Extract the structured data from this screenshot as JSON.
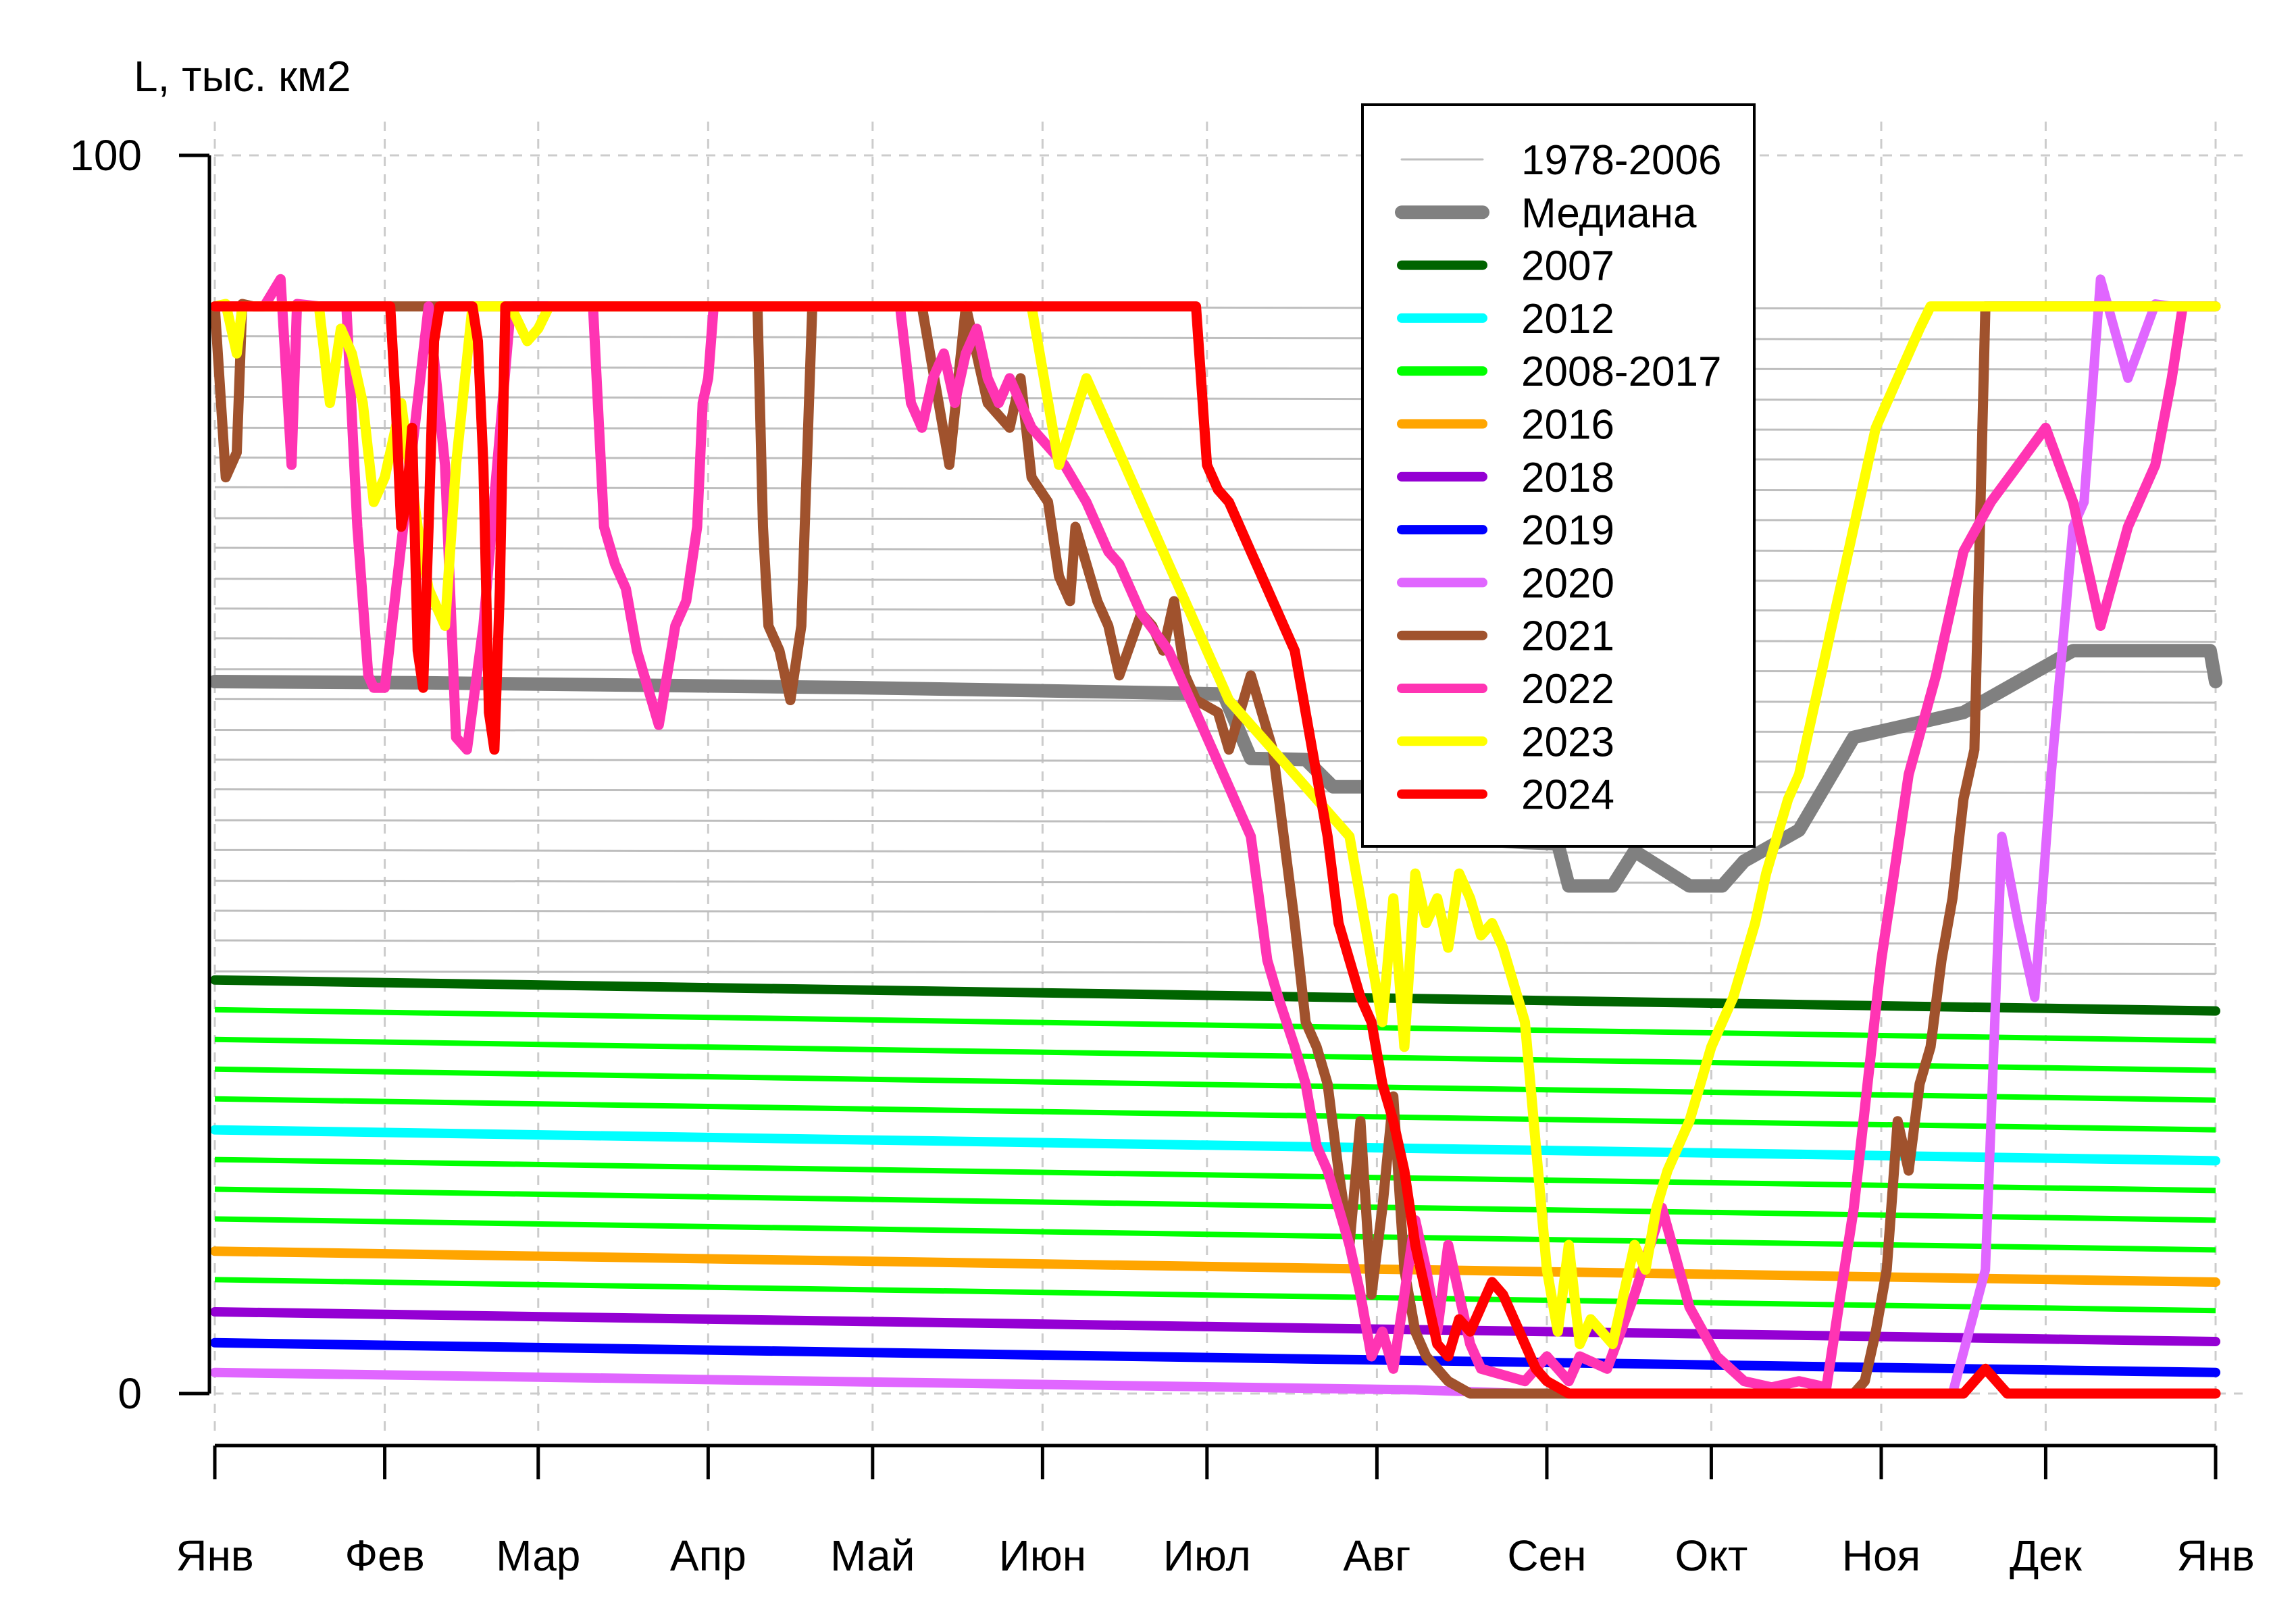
{
  "chart_data": {
    "type": "line",
    "ylabel": "L, тыс. км2",
    "ylim": [
      0,
      100
    ],
    "yticks": [
      0,
      100
    ],
    "xlim": [
      1,
      366
    ],
    "x_tick_days": [
      1,
      32,
      60,
      91,
      121,
      152,
      182,
      213,
      244,
      274,
      305,
      335,
      366
    ],
    "x_tick_labels": [
      "Янв",
      "Фев",
      "Мар",
      "Апр",
      "Май",
      "Июн",
      "Июл",
      "Авг",
      "Сен",
      "Окт",
      "Ноя",
      "Дек",
      "Янв"
    ],
    "grid": true,
    "legend_position": "top-center",
    "legend": [
      {
        "label": "1978-2006",
        "color": "#bebebe"
      },
      {
        "label": "Медиана",
        "color": "#808080"
      },
      {
        "label": "2007",
        "color": "#006400"
      },
      {
        "label": "2012",
        "color": "#00ffff"
      },
      {
        "label": "2008-2017",
        "color": "#00ff00"
      },
      {
        "label": "2016",
        "color": "#ffa500"
      },
      {
        "label": "2018",
        "color": "#9400d3"
      },
      {
        "label": "2019",
        "color": "#0000ff"
      },
      {
        "label": "2020",
        "color": "#e066ff"
      },
      {
        "label": "2021",
        "color": "#a0522d"
      },
      {
        "label": "2022",
        "color": "#ff34b3"
      },
      {
        "label": "2023",
        "color": "#ffff00"
      },
      {
        "label": "2024",
        "color": "#ff0000"
      }
    ],
    "series": [
      {
        "name": "Медиана",
        "color": "#808080",
        "x": [
          1,
          40,
          80,
          120,
          160,
          185,
          190,
          200,
          205,
          215,
          230,
          240,
          246,
          248,
          256,
          260,
          270,
          276,
          280,
          290,
          300,
          320,
          340,
          365,
          366
        ],
        "values": [
          57.5,
          57.4,
          57.2,
          57.0,
          56.7,
          56.5,
          51.3,
          51.2,
          49.0,
          49.0,
          44.8,
          44.5,
          44.4,
          41.0,
          41.0,
          43.8,
          41.0,
          41.0,
          43.0,
          45.5,
          53.0,
          55.0,
          60.0,
          60.0,
          57.5
        ]
      },
      {
        "name": "2007",
        "color": "#006400",
        "x": [
          1,
          366
        ],
        "values": [
          33.4,
          30.9
        ]
      },
      {
        "name": "2012",
        "color": "#00ffff",
        "x": [
          1,
          366
        ],
        "values": [
          21.3,
          18.8
        ]
      },
      {
        "name": "2016",
        "color": "#ffa500",
        "x": [
          1,
          366
        ],
        "values": [
          11.5,
          9.0
        ]
      },
      {
        "name": "2018",
        "color": "#9400d3",
        "x": [
          1,
          366
        ],
        "values": [
          6.6,
          4.2
        ]
      },
      {
        "name": "2019",
        "color": "#0000ff",
        "x": [
          1,
          366
        ],
        "values": [
          4.1,
          1.7
        ]
      },
      {
        "name": "2020",
        "color": "#e066ff",
        "x": [
          1,
          220,
          240,
          250,
          260,
          270,
          290,
          300,
          318,
          324,
          327,
          330,
          333,
          336,
          340,
          342,
          345,
          350,
          355,
          358,
          366
        ],
        "values": [
          1.7,
          0.3,
          0.0,
          0.0,
          0.0,
          0.0,
          0.0,
          0.0,
          0.0,
          10.0,
          45.0,
          38.0,
          32.0,
          50.0,
          70.0,
          72.0,
          90.0,
          82.0,
          88.0,
          87.8,
          87.8
        ]
      },
      {
        "name": "2021",
        "color": "#a0522d",
        "x": [
          1,
          3,
          5,
          6,
          8,
          10,
          100,
          101,
          102,
          104,
          106,
          108,
          110,
          111,
          130,
          135,
          138,
          142,
          146,
          148,
          150,
          153,
          155,
          157,
          158,
          160,
          162,
          164,
          166,
          170,
          172,
          174,
          176,
          178,
          180,
          184,
          186,
          190,
          192,
          194,
          196,
          198,
          200,
          202,
          204,
          206,
          208,
          210,
          212,
          214,
          216,
          218,
          220,
          222,
          224,
          226,
          228,
          230,
          232,
          236,
          240,
          300,
          302,
          304,
          306,
          308,
          310,
          312,
          314,
          316,
          318,
          320,
          322,
          324,
          366
        ],
        "values": [
          87.8,
          74.0,
          76.0,
          88.0,
          87.8,
          87.8,
          87.8,
          70.0,
          62.0,
          60.0,
          56.0,
          62.0,
          87.8,
          87.8,
          87.8,
          75.0,
          87.8,
          80.0,
          78.0,
          82.0,
          74.0,
          72.0,
          66.0,
          64.0,
          70.0,
          67.0,
          64.0,
          62.0,
          58.0,
          63.0,
          62.0,
          60.0,
          64.0,
          58.0,
          56.0,
          55.0,
          52.0,
          58.0,
          55.0,
          52.0,
          45.0,
          38.0,
          30.0,
          28.0,
          25.0,
          18.0,
          12.0,
          22.0,
          8.0,
          15.0,
          24.0,
          10.0,
          5.0,
          3.0,
          2.0,
          1.0,
          0.5,
          0.0,
          0.0,
          0.0,
          0.0,
          0.0,
          1.0,
          5.0,
          10.0,
          22.0,
          18.0,
          25.0,
          28.0,
          35.0,
          40.0,
          48.0,
          52.0,
          87.8,
          87.8
        ]
      },
      {
        "name": "2022",
        "color": "#ff34b3",
        "x": [
          1,
          10,
          13,
          15,
          16,
          20,
          25,
          27,
          29,
          30,
          32,
          40,
          43,
          45,
          47,
          50,
          55,
          70,
          72,
          74,
          76,
          78,
          80,
          82,
          85,
          87,
          89,
          90,
          91,
          92,
          93,
          94,
          120,
          126,
          128,
          130,
          132,
          134,
          136,
          138,
          140,
          142,
          144,
          146,
          148,
          150,
          152,
          154,
          156,
          160,
          164,
          166,
          170,
          175,
          180,
          185,
          190,
          193,
          195,
          198,
          200,
          202,
          204,
          206,
          208,
          210,
          212,
          214,
          216,
          218,
          220,
          222,
          224,
          226,
          228,
          230,
          232,
          240,
          244,
          246,
          248,
          250,
          255,
          260,
          265,
          270,
          275,
          280,
          285,
          290,
          295,
          300,
          305,
          310,
          315,
          320,
          325,
          330,
          335,
          340,
          342,
          345,
          350,
          355,
          358,
          360,
          366
        ],
        "values": [
          87.8,
          87.8,
          90.0,
          75.0,
          88.0,
          87.8,
          87.8,
          70.0,
          58.0,
          57.0,
          57.0,
          87.8,
          75.0,
          53.0,
          52.0,
          62.0,
          87.8,
          87.8,
          70.0,
          67.0,
          65.0,
          60.0,
          57.0,
          54.0,
          62.0,
          64.0,
          70.0,
          80.0,
          82.0,
          87.8,
          87.8,
          87.8,
          87.8,
          87.8,
          80.0,
          78.0,
          82.0,
          84.0,
          80.0,
          84.0,
          86.0,
          82.0,
          80.0,
          82.0,
          80.0,
          78.0,
          77.0,
          76.0,
          75.0,
          72.0,
          68.0,
          67.0,
          63.0,
          60.0,
          55.0,
          50.0,
          45.0,
          35.0,
          32.0,
          28.0,
          25.0,
          20.0,
          18.0,
          15.0,
          12.0,
          8.0,
          3.0,
          5.0,
          2.0,
          8.0,
          14.0,
          10.0,
          5.0,
          12.0,
          8.0,
          4.0,
          2.0,
          1.0,
          3.0,
          2.0,
          1.0,
          3.0,
          2.0,
          8.0,
          15.0,
          7.0,
          3.0,
          1.0,
          0.5,
          1.0,
          0.5,
          15.0,
          35.0,
          50.0,
          58.0,
          68.0,
          72.0,
          75.0,
          78.0,
          72.0,
          68.0,
          62.0,
          70.0,
          75.0,
          82.0,
          87.8,
          87.8
        ]
      },
      {
        "name": "2023",
        "color": "#ffff00",
        "x": [
          1,
          3,
          5,
          6,
          8,
          10,
          20,
          22,
          24,
          26,
          28,
          30,
          32,
          35,
          38,
          40,
          43,
          45,
          48,
          50,
          55,
          58,
          60,
          62,
          64,
          65,
          66,
          150,
          155,
          160,
          162,
          164,
          166,
          168,
          170,
          172,
          174,
          176,
          178,
          180,
          182,
          184,
          186,
          188,
          190,
          192,
          194,
          196,
          198,
          200,
          202,
          204,
          206,
          208,
          210,
          212,
          214,
          216,
          218,
          220,
          222,
          224,
          226,
          228,
          230,
          232,
          234,
          236,
          238,
          240,
          242,
          244,
          246,
          248,
          250,
          252,
          254,
          256,
          258,
          260,
          262,
          264,
          266,
          268,
          270,
          272,
          274,
          276,
          278,
          280,
          282,
          284,
          286,
          288,
          290,
          292,
          294,
          296,
          298,
          300,
          302,
          304,
          306,
          308,
          310,
          312,
          314,
          316,
          318,
          320,
          366
        ],
        "values": [
          87.8,
          88.0,
          84.0,
          87.8,
          87.8,
          87.8,
          87.8,
          80.0,
          86.0,
          84.0,
          80.0,
          72.0,
          74.0,
          80.0,
          70.0,
          65.0,
          62.0,
          75.0,
          87.8,
          87.8,
          87.8,
          85.0,
          86.0,
          87.8,
          87.8,
          87.8,
          87.8,
          87.8,
          75.0,
          82.0,
          80.0,
          78.0,
          76.0,
          74.0,
          72.0,
          70.0,
          68.0,
          66.0,
          64.0,
          62.0,
          60.0,
          58.0,
          56.0,
          55.0,
          54.0,
          53.0,
          52.0,
          51.0,
          50.0,
          49.0,
          48.0,
          47.0,
          46.0,
          45.0,
          40.0,
          35.0,
          30.0,
          40.0,
          28.0,
          42.0,
          38.0,
          40.0,
          36.0,
          42.0,
          40.0,
          37.0,
          38.0,
          36.0,
          33.0,
          30.0,
          20.0,
          10.0,
          5.0,
          12.0,
          4.0,
          6.0,
          5.0,
          4.0,
          8.0,
          12.0,
          10.0,
          15.0,
          18.0,
          20.0,
          22.0,
          25.0,
          28.0,
          30.0,
          32.0,
          35.0,
          38.0,
          42.0,
          45.0,
          48.0,
          50.0,
          54.0,
          58.0,
          62.0,
          66.0,
          70.0,
          74.0,
          78.0,
          80.0,
          82.0,
          84.0,
          86.0,
          87.8,
          87.8,
          87.8,
          87.8,
          87.8
        ]
      },
      {
        "name": "2024",
        "color": "#ff0000",
        "x": [
          1,
          10,
          20,
          30,
          32,
          33,
          34,
          35,
          36,
          37,
          38,
          39,
          40,
          41,
          42,
          43,
          44,
          45,
          46,
          48,
          49,
          50,
          51,
          52,
          53,
          54,
          55,
          56,
          57,
          58,
          60,
          150,
          154,
          158,
          160,
          162,
          164,
          166,
          168,
          170,
          172,
          174,
          176,
          178,
          180,
          182,
          184,
          186,
          188,
          190,
          192,
          194,
          196,
          198,
          200,
          202,
          204,
          206,
          208,
          210,
          212,
          214,
          216,
          218,
          220,
          222,
          224,
          226,
          228,
          230,
          232,
          234,
          236,
          238,
          240,
          242,
          244,
          246,
          248,
          250,
          255,
          260,
          270,
          280,
          290,
          300,
          310,
          315,
          320,
          322,
          324,
          325,
          326,
          327,
          328,
          330,
          332,
          334,
          336,
          338,
          340,
          342,
          344,
          346,
          348,
          350,
          352,
          354,
          356,
          358,
          360,
          366
        ],
        "values": [
          87.8,
          87.8,
          87.8,
          87.8,
          87.8,
          87.8,
          80.0,
          70.0,
          72.0,
          78.0,
          60.0,
          57.0,
          70.0,
          85.0,
          87.8,
          87.8,
          87.8,
          87.8,
          87.8,
          87.8,
          85.0,
          75.0,
          55.0,
          52.0,
          65.0,
          87.8,
          87.8,
          87.8,
          87.8,
          87.8,
          87.8,
          87.8,
          87.8,
          87.8,
          87.8,
          87.8,
          87.8,
          87.8,
          87.8,
          87.8,
          87.8,
          87.8,
          87.8,
          87.8,
          87.8,
          75.0,
          73.0,
          72.0,
          70.0,
          68.0,
          66.0,
          64.0,
          62.0,
          60.0,
          55.0,
          50.0,
          45.0,
          38.0,
          35.0,
          32.0,
          30.0,
          25.0,
          22.0,
          18.0,
          12.0,
          8.0,
          4.0,
          3.0,
          6.0,
          5.0,
          7.0,
          9.0,
          8.0,
          6.0,
          4.0,
          2.0,
          1.0,
          0.5,
          0.0,
          0.0,
          0.0,
          0.0,
          0.0,
          0.0,
          0.0,
          0.0,
          0.0,
          0.0,
          0.0,
          1.0,
          2.0,
          1.5,
          1.0,
          0.5,
          0.0,
          0.0,
          0.0,
          0.0,
          0.0,
          0.0,
          0.0,
          0.0,
          0.0,
          0.0,
          0.0,
          0.0,
          0.0,
          0.0,
          0.0,
          0.0,
          0.0,
          0.0
        ]
      }
    ],
    "band_series": {
      "name": "2008-2017",
      "color": "#00ff00",
      "start_values": [
        31.0,
        28.6,
        26.2,
        23.8,
        18.9,
        16.5,
        14.1,
        9.2
      ],
      "end_values": [
        28.5,
        26.1,
        23.7,
        21.3,
        16.4,
        14.0,
        11.6,
        6.7
      ]
    },
    "background_series": {
      "name": "1978-2006",
      "color": "#bebebe",
      "start_values": [
        87.8,
        85.4,
        82.9,
        80.5,
        78.0,
        75.6,
        73.2,
        70.7,
        68.3,
        65.8,
        63.4,
        61.0,
        58.5,
        56.1,
        53.6,
        51.2,
        48.8,
        46.3,
        43.9,
        41.4,
        39.0,
        36.6,
        34.1
      ],
      "end_values": [
        87.6,
        85.1,
        82.7,
        80.2,
        77.8,
        75.4,
        72.9,
        70.5,
        68.0,
        65.6,
        63.2,
        60.7,
        58.3,
        55.8,
        53.4,
        51.0,
        48.5,
        46.1,
        43.6,
        41.2,
        38.8,
        36.3,
        33.9
      ]
    }
  }
}
